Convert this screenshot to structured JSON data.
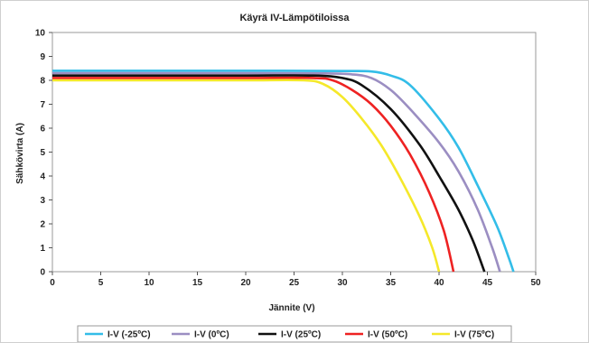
{
  "chart_data": {
    "type": "line",
    "title": "Käyrä IV-Lämpötiloissa",
    "xlabel": "Jännite (V)",
    "ylabel": "Sähkövirta (A)",
    "xlim": [
      0,
      50
    ],
    "ylim": [
      0,
      10
    ],
    "xticks": [
      "0",
      "5",
      "10",
      "15",
      "20",
      "25",
      "30",
      "35",
      "40",
      "45",
      "50"
    ],
    "yticks": [
      "0",
      "1",
      "2",
      "3",
      "4",
      "5",
      "6",
      "7",
      "8",
      "9",
      "10"
    ],
    "grid": true,
    "legend_position": "bottom",
    "series": [
      {
        "name": "I-V (-25ºC)",
        "color": "#33bde8",
        "points": [
          [
            0,
            8.4
          ],
          [
            10,
            8.4
          ],
          [
            20,
            8.4
          ],
          [
            30,
            8.39
          ],
          [
            33,
            8.37
          ],
          [
            35,
            8.2
          ],
          [
            37,
            7.8
          ],
          [
            40,
            6.4
          ],
          [
            42,
            5.2
          ],
          [
            44,
            3.6
          ],
          [
            46,
            1.9
          ],
          [
            47.2,
            0.6
          ],
          [
            47.7,
            0
          ]
        ]
      },
      {
        "name": "I-V (0ºC)",
        "color": "#9b8ec2",
        "points": [
          [
            0,
            8.3
          ],
          [
            10,
            8.3
          ],
          [
            20,
            8.3
          ],
          [
            28,
            8.29
          ],
          [
            31,
            8.25
          ],
          [
            33,
            8.1
          ],
          [
            35,
            7.6
          ],
          [
            37,
            6.8
          ],
          [
            40,
            5.4
          ],
          [
            42,
            4.2
          ],
          [
            44,
            2.6
          ],
          [
            45.5,
            1.0
          ],
          [
            46.3,
            0
          ]
        ]
      },
      {
        "name": "I-V (25ºC)",
        "color": "#111111",
        "points": [
          [
            0,
            8.2
          ],
          [
            10,
            8.2
          ],
          [
            20,
            8.2
          ],
          [
            27,
            8.2
          ],
          [
            30,
            8.1
          ],
          [
            32,
            7.8
          ],
          [
            35,
            6.8
          ],
          [
            38,
            5.3
          ],
          [
            40,
            4.0
          ],
          [
            42,
            2.6
          ],
          [
            43.5,
            1.3
          ],
          [
            44.7,
            0
          ]
        ]
      },
      {
        "name": "I-V (50ºC)",
        "color": "#ee2222",
        "points": [
          [
            0,
            8.1
          ],
          [
            10,
            8.1
          ],
          [
            20,
            8.1
          ],
          [
            27,
            8.1
          ],
          [
            29,
            8.0
          ],
          [
            31,
            7.6
          ],
          [
            33,
            7.0
          ],
          [
            35,
            6.1
          ],
          [
            37,
            4.9
          ],
          [
            39,
            3.3
          ],
          [
            40.5,
            1.7
          ],
          [
            41.5,
            0
          ]
        ]
      },
      {
        "name": "I-V (75ºC)",
        "color": "#f5e82a",
        "points": [
          [
            0,
            8.0
          ],
          [
            10,
            8.0
          ],
          [
            20,
            8.0
          ],
          [
            26,
            8.0
          ],
          [
            28,
            7.85
          ],
          [
            30,
            7.3
          ],
          [
            32,
            6.4
          ],
          [
            34,
            5.3
          ],
          [
            36,
            3.9
          ],
          [
            38,
            2.3
          ],
          [
            39.3,
            1.0
          ],
          [
            40,
            0
          ]
        ]
      }
    ]
  }
}
